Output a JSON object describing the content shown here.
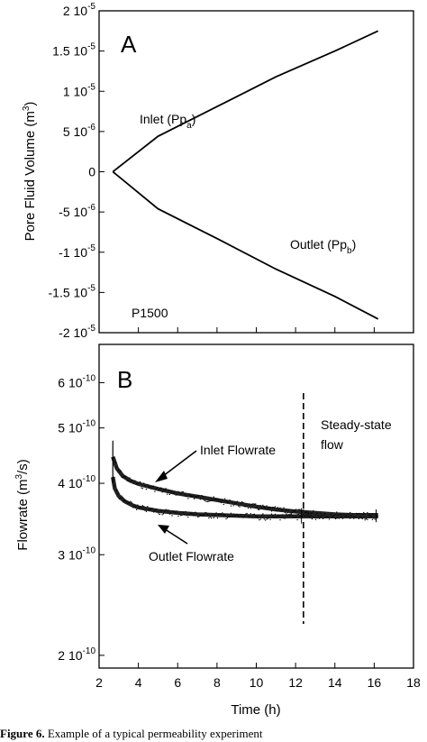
{
  "chart_data": [
    {
      "type": "line",
      "panel_label": "A",
      "ylabel_main": "Pore Fluid Volume (m",
      "ylabel_sup": "3",
      "ylabel_end": ")",
      "ylim": [
        -2e-05,
        2e-05
      ],
      "xlim": [
        2,
        18
      ],
      "yticks": [
        {
          "value": 2e-05,
          "base": "2 10",
          "exp": "-5"
        },
        {
          "value": 1.5e-05,
          "base": "1.5 10",
          "exp": "-5"
        },
        {
          "value": 1e-05,
          "base": "1 10",
          "exp": "-5"
        },
        {
          "value": 5e-06,
          "base": "5 10",
          "exp": "-6"
        },
        {
          "value": 0,
          "base": "0",
          "exp": ""
        },
        {
          "value": -5e-06,
          "base": "-5 10",
          "exp": "-6"
        },
        {
          "value": -1e-05,
          "base": "-1 10",
          "exp": "-5"
        },
        {
          "value": -1.5e-05,
          "base": "-1.5 10",
          "exp": "-5"
        },
        {
          "value": -2e-05,
          "base": "-2 10",
          "exp": "-5"
        }
      ],
      "series": [
        {
          "name": "Inlet (Pp_a)",
          "x": [
            2.7,
            5,
            8,
            11,
            14,
            16.2
          ],
          "y": [
            0,
            4.4e-06,
            8.1e-06,
            1.18e-05,
            1.5e-05,
            1.75e-05
          ]
        },
        {
          "name": "Outlet (Pp_b)",
          "x": [
            2.7,
            5,
            8,
            11,
            14,
            16.2
          ],
          "y": [
            0,
            -4.6e-06,
            -8.3e-06,
            -1.21e-05,
            -1.55e-05,
            -1.83e-05
          ]
        }
      ],
      "annotations": {
        "inlet_main": "Inlet (Pp",
        "inlet_sub": "a",
        "inlet_end": ")",
        "outlet_main": "Outlet (Pp",
        "outlet_sub": "b",
        "outlet_end": ")",
        "sample": "P1500"
      }
    },
    {
      "type": "scatter",
      "panel_label": "B",
      "ylabel_main": "Flowrate (m",
      "ylabel_sup": "3",
      "ylabel_end": "/s)",
      "y_scale": "log",
      "ylim": [
        1.9e-10,
        7e-10
      ],
      "xlim": [
        2,
        18
      ],
      "xlabel": "Time (h)",
      "xticks": [
        "2",
        "4",
        "6",
        "8",
        "10",
        "12",
        "14",
        "16",
        "18"
      ],
      "yticks": [
        {
          "value": 6e-10,
          "base": "6 10",
          "exp": "-10"
        },
        {
          "value": 5e-10,
          "base": "5 10",
          "exp": "-10"
        },
        {
          "value": 4e-10,
          "base": "4 10",
          "exp": "-10"
        },
        {
          "value": 3e-10,
          "base": "3 10",
          "exp": "-10"
        },
        {
          "value": 2e-10,
          "base": "2 10",
          "exp": "-10"
        }
      ],
      "series": [
        {
          "name": "Inlet Flowrate",
          "x": [
            2.7,
            2.9,
            3.2,
            3.6,
            4,
            5,
            6,
            7,
            8,
            9,
            10,
            11,
            12,
            13,
            14,
            15,
            16.2
          ],
          "y": [
            4.45e-10,
            4.25e-10,
            4.12e-10,
            4.04e-10,
            3.99e-10,
            3.91e-10,
            3.84e-10,
            3.79e-10,
            3.74e-10,
            3.69e-10,
            3.64e-10,
            3.6e-10,
            3.57e-10,
            3.55e-10,
            3.53e-10,
            3.52e-10,
            3.52e-10
          ]
        },
        {
          "name": "Outlet Flowrate",
          "x": [
            2.7,
            2.8,
            3,
            3.3,
            3.7,
            4,
            5,
            6,
            7,
            8,
            9,
            10,
            11,
            12,
            13,
            14,
            15,
            16.2
          ],
          "y": [
            4.1e-10,
            3.92e-10,
            3.8e-10,
            3.72e-10,
            3.66e-10,
            3.63e-10,
            3.58e-10,
            3.55e-10,
            3.53e-10,
            3.52e-10,
            3.51e-10,
            3.5e-10,
            3.5e-10,
            3.5e-10,
            3.5e-10,
            3.5e-10,
            3.5e-10,
            3.5e-10
          ]
        }
      ],
      "steady_state_x": 12.4,
      "annotations": {
        "inlet": "Inlet Flowrate",
        "outlet": "Outlet Flowrate",
        "steady_line1": "Steady-state",
        "steady_line2": "flow"
      }
    }
  ],
  "caption": {
    "label": "Figure 6.",
    "text": "Example of a typical permeability experiment"
  }
}
